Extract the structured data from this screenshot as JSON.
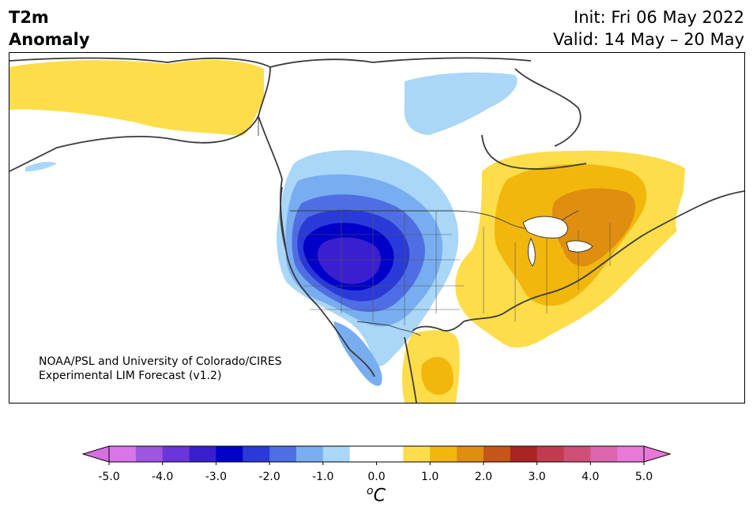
{
  "title": {
    "left_line1": "T2m",
    "left_line2": "Anomaly",
    "right_line1": "Init: Fri 06 May 2022",
    "right_line2": "Valid: 14 May – 20 May"
  },
  "credit": {
    "line1": "NOAA/PSL and University of Colorado/CIRES",
    "line2": "Experimental LIM Forecast (v1.2)"
  },
  "colorbar": {
    "unit_sup": "o",
    "unit_main": "C",
    "tick_labels": [
      "-5.0",
      "-4.0",
      "-3.0",
      "-2.0",
      "-1.0",
      "0.0",
      "1.0",
      "2.0",
      "3.0",
      "4.0",
      "5.0"
    ],
    "color_levels": [
      "#d975e8",
      "#9e55e0",
      "#6a36d9",
      "#3a1fd0",
      "#0000c8",
      "#2a3ad8",
      "#4f6ee4",
      "#78aef0",
      "#aad6f7",
      "#ffffff",
      "#ffffff",
      "#fedd4a",
      "#f2b70d",
      "#df8e10",
      "#c55617",
      "#ab2323",
      "#c23a4e",
      "#cf4f77",
      "#dc66ad",
      "#e879d8"
    ],
    "under_color": "#d96ee3",
    "over_color": "#e878d6"
  },
  "anomaly_colors": {
    "neg_1": "#aad6f7",
    "neg_1_5": "#78aef0",
    "neg_2": "#4f6ee4",
    "neg_2_5": "#2a3ad8",
    "neg_3": "#0000c8",
    "neg_3_5": "#3a1fd0",
    "neg_4": "#6a36d9",
    "pos_1": "#fedd4a",
    "pos_1_5": "#f2b70d",
    "pos_2": "#df8e10"
  }
}
